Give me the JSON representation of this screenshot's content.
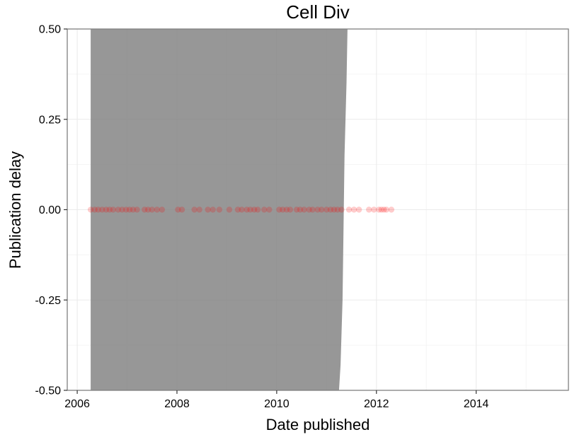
{
  "chart_data": {
    "type": "scatter",
    "title": "Cell Div",
    "xlabel": "Date published",
    "ylabel": "Publication delay",
    "xlim": [
      2005.8,
      2015.85
    ],
    "ylim": [
      -0.5,
      0.5
    ],
    "x_ticks": [
      2006,
      2008,
      2010,
      2012,
      2014
    ],
    "x_tick_labels": [
      "2006",
      "2008",
      "2010",
      "2012",
      "2014"
    ],
    "y_ticks": [
      -0.5,
      -0.25,
      0,
      0.25,
      0.5
    ],
    "y_tick_labels": [
      "-0.50",
      "-0.25",
      "0.00",
      "0.25",
      "0.50"
    ],
    "grid": true,
    "point_color": "#ff0000",
    "shade_color": "#808080",
    "shaded_area": {
      "x": [
        2006.27,
        2011.25,
        2011.28,
        2011.32,
        2011.34,
        2011.36,
        2011.4,
        2011.42
      ],
      "y_top": [
        0.5,
        0.5,
        0.5,
        0.5,
        0.5,
        0.5,
        0.5,
        0.5
      ],
      "y_bottom": [
        -0.5,
        -0.5,
        -0.43,
        -0.25,
        -0.05,
        0.15,
        0.35,
        0.5
      ]
    },
    "series": [
      {
        "values": [
          {
            "x": 2006.27,
            "y": 0
          },
          {
            "x": 2006.35,
            "y": 0
          },
          {
            "x": 2006.42,
            "y": 0
          },
          {
            "x": 2006.5,
            "y": 0
          },
          {
            "x": 2006.58,
            "y": 0
          },
          {
            "x": 2006.65,
            "y": 0
          },
          {
            "x": 2006.72,
            "y": 0
          },
          {
            "x": 2006.82,
            "y": 0
          },
          {
            "x": 2006.9,
            "y": 0
          },
          {
            "x": 2006.98,
            "y": 0
          },
          {
            "x": 2007.05,
            "y": 0
          },
          {
            "x": 2007.12,
            "y": 0
          },
          {
            "x": 2007.2,
            "y": 0
          },
          {
            "x": 2007.35,
            "y": 0
          },
          {
            "x": 2007.42,
            "y": 0
          },
          {
            "x": 2007.5,
            "y": 0
          },
          {
            "x": 2007.6,
            "y": 0
          },
          {
            "x": 2007.7,
            "y": 0
          },
          {
            "x": 2008.02,
            "y": 0
          },
          {
            "x": 2008.1,
            "y": 0
          },
          {
            "x": 2008.35,
            "y": 0
          },
          {
            "x": 2008.45,
            "y": 0
          },
          {
            "x": 2008.62,
            "y": 0
          },
          {
            "x": 2008.72,
            "y": 0
          },
          {
            "x": 2008.85,
            "y": 0
          },
          {
            "x": 2009.05,
            "y": 0
          },
          {
            "x": 2009.22,
            "y": 0
          },
          {
            "x": 2009.3,
            "y": 0
          },
          {
            "x": 2009.4,
            "y": 0
          },
          {
            "x": 2009.47,
            "y": 0
          },
          {
            "x": 2009.55,
            "y": 0
          },
          {
            "x": 2009.62,
            "y": 0
          },
          {
            "x": 2009.75,
            "y": 0
          },
          {
            "x": 2009.85,
            "y": 0
          },
          {
            "x": 2010.05,
            "y": 0
          },
          {
            "x": 2010.12,
            "y": 0
          },
          {
            "x": 2010.2,
            "y": 0
          },
          {
            "x": 2010.27,
            "y": 0
          },
          {
            "x": 2010.4,
            "y": 0
          },
          {
            "x": 2010.47,
            "y": 0
          },
          {
            "x": 2010.55,
            "y": 0
          },
          {
            "x": 2010.65,
            "y": 0
          },
          {
            "x": 2010.72,
            "y": 0
          },
          {
            "x": 2010.82,
            "y": 0
          },
          {
            "x": 2010.9,
            "y": 0
          },
          {
            "x": 2011.0,
            "y": 0
          },
          {
            "x": 2011.08,
            "y": 0
          },
          {
            "x": 2011.15,
            "y": 0
          },
          {
            "x": 2011.22,
            "y": 0
          },
          {
            "x": 2011.3,
            "y": 0
          },
          {
            "x": 2011.45,
            "y": 0
          },
          {
            "x": 2011.55,
            "y": 0
          },
          {
            "x": 2011.65,
            "y": 0
          },
          {
            "x": 2011.85,
            "y": 0
          },
          {
            "x": 2011.95,
            "y": 0
          },
          {
            "x": 2012.05,
            "y": 0
          },
          {
            "x": 2012.1,
            "y": 0
          },
          {
            "x": 2012.15,
            "y": 0
          },
          {
            "x": 2012.2,
            "y": 0
          },
          {
            "x": 2012.3,
            "y": 0
          }
        ]
      }
    ]
  }
}
